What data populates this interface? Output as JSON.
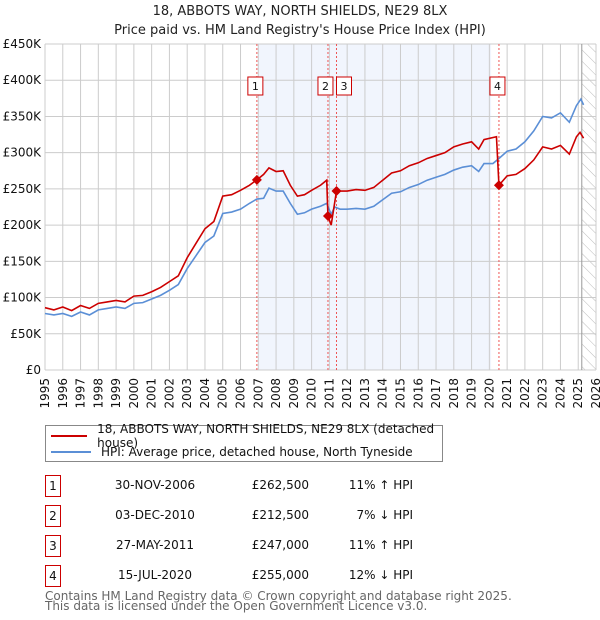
{
  "chart_data": {
    "type": "line",
    "title": "18, ABBOTS WAY, NORTH SHIELDS, NE29 8LX",
    "subtitle": "Price paid vs. HM Land Registry's House Price Index (HPI)",
    "xlim": [
      1995,
      2026
    ],
    "ylim": [
      0,
      450000
    ],
    "x_ticks": [
      "1995",
      "1996",
      "1997",
      "1998",
      "1999",
      "2000",
      "2001",
      "2002",
      "2003",
      "2004",
      "2005",
      "2006",
      "2007",
      "2008",
      "2009",
      "2010",
      "2011",
      "2012",
      "2013",
      "2014",
      "2015",
      "2016",
      "2017",
      "2018",
      "2019",
      "2020",
      "2021",
      "2022",
      "2023",
      "2024",
      "2025",
      "2026"
    ],
    "y_ticks": [
      {
        "v": 0,
        "label": "£0"
      },
      {
        "v": 50000,
        "label": "£50K"
      },
      {
        "v": 100000,
        "label": "£100K"
      },
      {
        "v": 150000,
        "label": "£150K"
      },
      {
        "v": 200000,
        "label": "£200K"
      },
      {
        "v": 250000,
        "label": "£250K"
      },
      {
        "v": 300000,
        "label": "£300K"
      },
      {
        "v": 350000,
        "label": "£350K"
      },
      {
        "v": 400000,
        "label": "£400K"
      },
      {
        "v": 450000,
        "label": "£450K"
      }
    ],
    "grid": true,
    "shaded_range": [
      2007.0,
      2020.1
    ],
    "forecast_hatch_from": 2025.2,
    "series": [
      {
        "name": "18, ABBOTS WAY, NORTH SHIELDS, NE29 8LX (detached house)",
        "color": "#cc0000",
        "points": [
          [
            1995,
            86000
          ],
          [
            1995.5,
            83000
          ],
          [
            1996,
            87000
          ],
          [
            1996.5,
            82000
          ],
          [
            1997,
            89000
          ],
          [
            1997.5,
            85000
          ],
          [
            1998,
            92000
          ],
          [
            1998.5,
            94000
          ],
          [
            1999,
            96000
          ],
          [
            1999.5,
            94000
          ],
          [
            2000,
            102000
          ],
          [
            2000.5,
            103000
          ],
          [
            2001,
            108000
          ],
          [
            2001.5,
            114000
          ],
          [
            2002,
            122000
          ],
          [
            2002.5,
            130000
          ],
          [
            2003,
            155000
          ],
          [
            2003.5,
            175000
          ],
          [
            2004,
            195000
          ],
          [
            2004.5,
            205000
          ],
          [
            2005,
            240000
          ],
          [
            2005.5,
            242000
          ],
          [
            2006,
            248000
          ],
          [
            2006.5,
            255000
          ],
          [
            2006.92,
            262500
          ],
          [
            2007.3,
            270000
          ],
          [
            2007.6,
            279000
          ],
          [
            2008,
            274000
          ],
          [
            2008.4,
            275000
          ],
          [
            2008.8,
            255000
          ],
          [
            2009.2,
            240000
          ],
          [
            2009.6,
            242000
          ],
          [
            2010,
            248000
          ],
          [
            2010.5,
            255000
          ],
          [
            2010.85,
            262000
          ],
          [
            2010.92,
            212500
          ],
          [
            2011.1,
            200000
          ],
          [
            2011.4,
            247000
          ],
          [
            2012,
            247000
          ],
          [
            2012.5,
            249000
          ],
          [
            2013,
            248000
          ],
          [
            2013.5,
            252000
          ],
          [
            2014,
            262000
          ],
          [
            2014.5,
            272000
          ],
          [
            2015,
            275000
          ],
          [
            2015.5,
            282000
          ],
          [
            2016,
            286000
          ],
          [
            2016.5,
            292000
          ],
          [
            2017,
            296000
          ],
          [
            2017.5,
            300000
          ],
          [
            2018,
            308000
          ],
          [
            2018.5,
            312000
          ],
          [
            2019,
            315000
          ],
          [
            2019.4,
            305000
          ],
          [
            2019.7,
            318000
          ],
          [
            2020.4,
            322000
          ],
          [
            2020.54,
            255000
          ],
          [
            2021,
            268000
          ],
          [
            2021.5,
            270000
          ],
          [
            2022,
            278000
          ],
          [
            2022.5,
            290000
          ],
          [
            2023,
            308000
          ],
          [
            2023.5,
            305000
          ],
          [
            2024,
            310000
          ],
          [
            2024.5,
            298000
          ],
          [
            2024.9,
            322000
          ],
          [
            2025.1,
            328000
          ],
          [
            2025.3,
            320000
          ]
        ]
      },
      {
        "name": "HPI: Average price, detached house, North Tyneside",
        "color": "#5b8fd6",
        "points": [
          [
            1995,
            78000
          ],
          [
            1995.5,
            76000
          ],
          [
            1996,
            78000
          ],
          [
            1996.5,
            74000
          ],
          [
            1997,
            80000
          ],
          [
            1997.5,
            76000
          ],
          [
            1998,
            83000
          ],
          [
            1998.5,
            85000
          ],
          [
            1999,
            87000
          ],
          [
            1999.5,
            85000
          ],
          [
            2000,
            92000
          ],
          [
            2000.5,
            93000
          ],
          [
            2001,
            98000
          ],
          [
            2001.5,
            103000
          ],
          [
            2002,
            110000
          ],
          [
            2002.5,
            118000
          ],
          [
            2003,
            140000
          ],
          [
            2003.5,
            158000
          ],
          [
            2004,
            176000
          ],
          [
            2004.5,
            185000
          ],
          [
            2005,
            216000
          ],
          [
            2005.5,
            218000
          ],
          [
            2006,
            222000
          ],
          [
            2006.5,
            230000
          ],
          [
            2006.92,
            236000
          ],
          [
            2007.3,
            237000
          ],
          [
            2007.6,
            251000
          ],
          [
            2008,
            247000
          ],
          [
            2008.4,
            247000
          ],
          [
            2008.8,
            230000
          ],
          [
            2009.2,
            215000
          ],
          [
            2009.6,
            217000
          ],
          [
            2010,
            222000
          ],
          [
            2010.5,
            226000
          ],
          [
            2010.85,
            230000
          ],
          [
            2011.1,
            215000
          ],
          [
            2011.3,
            225000
          ],
          [
            2011.6,
            222000
          ],
          [
            2012,
            222000
          ],
          [
            2012.5,
            223000
          ],
          [
            2013,
            222000
          ],
          [
            2013.5,
            226000
          ],
          [
            2014,
            235000
          ],
          [
            2014.5,
            244000
          ],
          [
            2015,
            246000
          ],
          [
            2015.5,
            252000
          ],
          [
            2016,
            256000
          ],
          [
            2016.5,
            262000
          ],
          [
            2017,
            266000
          ],
          [
            2017.5,
            270000
          ],
          [
            2018,
            276000
          ],
          [
            2018.5,
            280000
          ],
          [
            2019,
            282000
          ],
          [
            2019.4,
            274000
          ],
          [
            2019.7,
            285000
          ],
          [
            2020.2,
            285000
          ],
          [
            2020.54,
            292000
          ],
          [
            2021,
            302000
          ],
          [
            2021.5,
            305000
          ],
          [
            2022,
            315000
          ],
          [
            2022.5,
            330000
          ],
          [
            2023,
            350000
          ],
          [
            2023.5,
            348000
          ],
          [
            2024,
            355000
          ],
          [
            2024.5,
            342000
          ],
          [
            2024.9,
            365000
          ],
          [
            2025.15,
            374000
          ],
          [
            2025.3,
            366000
          ]
        ]
      }
    ],
    "sales": [
      {
        "label": "1",
        "x": 2006.92,
        "y": 262500
      },
      {
        "label": "2",
        "x": 2010.92,
        "y": 212500
      },
      {
        "label": "3",
        "x": 2011.4,
        "y": 247000
      },
      {
        "label": "4",
        "x": 2020.54,
        "y": 255000
      }
    ]
  },
  "legend": {
    "property": "18, ABBOTS WAY, NORTH SHIELDS, NE29 8LX (detached house)",
    "hpi": "HPI: Average price, detached house, North Tyneside"
  },
  "transactions": [
    {
      "num": "1",
      "date": "30-NOV-2006",
      "price": "£262,500",
      "hpi": "11% ↑ HPI"
    },
    {
      "num": "2",
      "date": "03-DEC-2010",
      "price": "£212,500",
      "hpi": "7% ↓ HPI"
    },
    {
      "num": "3",
      "date": "27-MAY-2011",
      "price": "£247,000",
      "hpi": "11% ↑ HPI"
    },
    {
      "num": "4",
      "date": "15-JUL-2020",
      "price": "£255,000",
      "hpi": "12% ↓ HPI"
    }
  ],
  "footer": {
    "line1": "Contains HM Land Registry data © Crown copyright and database right 2025.",
    "line2": "This data is licensed under the Open Government Licence v3.0."
  }
}
